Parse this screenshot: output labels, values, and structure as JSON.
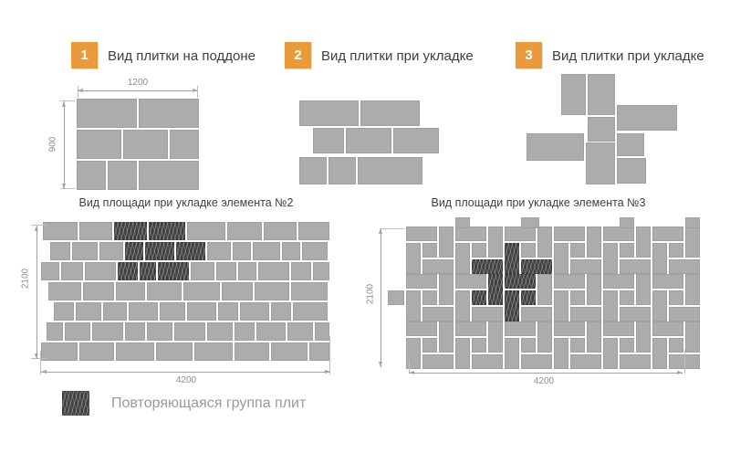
{
  "colors": {
    "accent_orange": "#E99B3B",
    "tile_gray": "#ACACAC",
    "tile_dark_hatched": "#3E3E3E",
    "dimension_line": "#A3A3A3",
    "dimension_text": "#8C8C8C",
    "title_text": "#3F3F3F",
    "legend_text": "#9A9A9A",
    "background": "#FFFFFF"
  },
  "steps": [
    {
      "badge": "1",
      "title": "Вид плитки на поддоне",
      "dim_top": "1200",
      "dim_left": "900",
      "tiles": [
        [
          0,
          0,
          66,
          32
        ],
        [
          68,
          0,
          66,
          32
        ],
        [
          0,
          34,
          49,
          32
        ],
        [
          51,
          34,
          49,
          32
        ],
        [
          102,
          34,
          32,
          32
        ],
        [
          0,
          68,
          32,
          32
        ],
        [
          34,
          68,
          32,
          32
        ],
        [
          68,
          68,
          66,
          32
        ]
      ]
    },
    {
      "badge": "2",
      "title": "Вид плитки при укладке",
      "tiles": [
        [
          0,
          0,
          65,
          28
        ],
        [
          67,
          0,
          65,
          28
        ],
        [
          15,
          30,
          34,
          28
        ],
        [
          51,
          30,
          50,
          28
        ],
        [
          103,
          30,
          50,
          28
        ],
        [
          0,
          62,
          30,
          30
        ],
        [
          32,
          62,
          30,
          30
        ],
        [
          64,
          62,
          71,
          30
        ]
      ]
    },
    {
      "badge": "3",
      "title": "Вид плитки при укладке",
      "tiles": [
        [
          38,
          0,
          27,
          45
        ],
        [
          67,
          0,
          30,
          45
        ],
        [
          99,
          34,
          66,
          28
        ],
        [
          67,
          47,
          30,
          27
        ],
        [
          0,
          65,
          63,
          30
        ],
        [
          65,
          75,
          32,
          46
        ],
        [
          99,
          65,
          30,
          25
        ],
        [
          99,
          92,
          32,
          28
        ]
      ]
    }
  ],
  "areas": [
    {
      "title": "Вид площади при укладке элемента №2",
      "dim_bottom": "4200",
      "dim_left": "2100",
      "tiles": [
        [
          2,
          0,
          38,
          20
        ],
        [
          42,
          0,
          36,
          20
        ],
        [
          80,
          0,
          36,
          20,
          1
        ],
        [
          118,
          0,
          40,
          20,
          1
        ],
        [
          160,
          0,
          42,
          20
        ],
        [
          204,
          0,
          38,
          20
        ],
        [
          244,
          0,
          36,
          20
        ],
        [
          282,
          0,
          34,
          20
        ],
        [
          10,
          22,
          22,
          20
        ],
        [
          34,
          22,
          28,
          20
        ],
        [
          64,
          22,
          26,
          20
        ],
        [
          92,
          22,
          20,
          20,
          1
        ],
        [
          114,
          22,
          32,
          20,
          1
        ],
        [
          148,
          22,
          32,
          20,
          1
        ],
        [
          182,
          22,
          26,
          20
        ],
        [
          210,
          22,
          20,
          20
        ],
        [
          232,
          22,
          30,
          20
        ],
        [
          264,
          22,
          20,
          20
        ],
        [
          286,
          22,
          28,
          20
        ],
        [
          0,
          44,
          20,
          20
        ],
        [
          22,
          44,
          24,
          20
        ],
        [
          48,
          44,
          34,
          20
        ],
        [
          84,
          44,
          22,
          20,
          1
        ],
        [
          108,
          44,
          18,
          20,
          1
        ],
        [
          128,
          44,
          34,
          20,
          1
        ],
        [
          164,
          44,
          26,
          20
        ],
        [
          192,
          44,
          22,
          20
        ],
        [
          216,
          44,
          20,
          20
        ],
        [
          238,
          44,
          34,
          20
        ],
        [
          274,
          44,
          22,
          20
        ],
        [
          298,
          44,
          18,
          20
        ],
        [
          8,
          66,
          36,
          20
        ],
        [
          46,
          66,
          34,
          20
        ],
        [
          82,
          66,
          32,
          20
        ],
        [
          116,
          66,
          38,
          20
        ],
        [
          156,
          66,
          40,
          20
        ],
        [
          198,
          66,
          34,
          20
        ],
        [
          234,
          66,
          38,
          20
        ],
        [
          274,
          66,
          40,
          20
        ],
        [
          14,
          88,
          22,
          20
        ],
        [
          38,
          88,
          28,
          20
        ],
        [
          68,
          88,
          26,
          20
        ],
        [
          96,
          88,
          32,
          20
        ],
        [
          130,
          88,
          28,
          20
        ],
        [
          160,
          88,
          32,
          20
        ],
        [
          194,
          88,
          22,
          20
        ],
        [
          218,
          88,
          32,
          20
        ],
        [
          252,
          88,
          22,
          20
        ],
        [
          276,
          88,
          38,
          20
        ],
        [
          6,
          110,
          18,
          20
        ],
        [
          26,
          110,
          28,
          20
        ],
        [
          56,
          110,
          34,
          20
        ],
        [
          92,
          110,
          22,
          20
        ],
        [
          116,
          110,
          28,
          20
        ],
        [
          146,
          110,
          34,
          20
        ],
        [
          182,
          110,
          28,
          20
        ],
        [
          212,
          110,
          22,
          20
        ],
        [
          236,
          110,
          32,
          20
        ],
        [
          270,
          110,
          28,
          20
        ],
        [
          300,
          110,
          16,
          20
        ],
        [
          0,
          132,
          40,
          20
        ],
        [
          42,
          132,
          38,
          20
        ],
        [
          82,
          132,
          42,
          20
        ],
        [
          126,
          132,
          40,
          20
        ],
        [
          168,
          132,
          42,
          20
        ],
        [
          212,
          132,
          38,
          20
        ],
        [
          252,
          132,
          40,
          20
        ],
        [
          294,
          132,
          22,
          20
        ]
      ]
    },
    {
      "title": "Вид площади при укладке элемента №3",
      "dim_bottom": "4200",
      "dim_left": "2100",
      "tiles": [
        [
          0,
          0,
          34,
          16
        ],
        [
          36,
          0,
          16,
          34
        ],
        [
          18,
          18,
          16,
          16
        ],
        [
          0,
          18,
          16,
          34
        ],
        [
          18,
          36,
          34,
          16
        ],
        [
          54,
          0,
          34,
          16
        ],
        [
          90,
          0,
          16,
          34
        ],
        [
          72,
          18,
          16,
          16
        ],
        [
          54,
          18,
          16,
          34
        ],
        [
          72,
          36,
          34,
          16,
          1
        ],
        [
          108,
          0,
          34,
          16
        ],
        [
          144,
          0,
          16,
          34
        ],
        [
          126,
          18,
          16,
          16
        ],
        [
          108,
          18,
          16,
          34,
          1
        ],
        [
          126,
          36,
          34,
          16,
          1
        ],
        [
          162,
          0,
          34,
          16
        ],
        [
          198,
          0,
          16,
          34
        ],
        [
          180,
          18,
          16,
          16
        ],
        [
          162,
          18,
          16,
          34
        ],
        [
          180,
          36,
          34,
          16
        ],
        [
          216,
          0,
          34,
          16
        ],
        [
          252,
          0,
          16,
          34
        ],
        [
          234,
          18,
          16,
          16
        ],
        [
          216,
          18,
          16,
          34
        ],
        [
          234,
          36,
          34,
          16
        ],
        [
          270,
          0,
          34,
          16
        ],
        [
          306,
          0,
          16,
          34
        ],
        [
          288,
          18,
          16,
          16
        ],
        [
          270,
          18,
          16,
          34
        ],
        [
          288,
          36,
          34,
          16
        ],
        [
          0,
          52,
          34,
          16
        ],
        [
          36,
          52,
          16,
          34
        ],
        [
          18,
          70,
          16,
          16
        ],
        [
          0,
          70,
          16,
          34
        ],
        [
          18,
          88,
          34,
          16
        ],
        [
          54,
          52,
          34,
          16
        ],
        [
          90,
          52,
          16,
          34,
          1
        ],
        [
          72,
          70,
          16,
          16,
          1
        ],
        [
          54,
          70,
          16,
          34
        ],
        [
          72,
          88,
          34,
          16
        ],
        [
          108,
          52,
          34,
          16,
          1
        ],
        [
          144,
          52,
          16,
          34
        ],
        [
          126,
          70,
          16,
          16,
          1
        ],
        [
          108,
          70,
          16,
          34,
          1
        ],
        [
          126,
          88,
          34,
          16
        ],
        [
          162,
          52,
          34,
          16
        ],
        [
          198,
          52,
          16,
          34
        ],
        [
          180,
          70,
          16,
          16
        ],
        [
          162,
          70,
          16,
          34
        ],
        [
          180,
          88,
          34,
          16
        ],
        [
          216,
          52,
          34,
          16
        ],
        [
          252,
          52,
          16,
          34
        ],
        [
          234,
          70,
          16,
          16
        ],
        [
          216,
          70,
          16,
          34
        ],
        [
          234,
          88,
          34,
          16
        ],
        [
          270,
          52,
          34,
          16
        ],
        [
          306,
          52,
          16,
          34
        ],
        [
          288,
          70,
          16,
          16
        ],
        [
          270,
          70,
          16,
          34
        ],
        [
          288,
          88,
          34,
          16
        ],
        [
          0,
          104,
          34,
          16
        ],
        [
          36,
          104,
          16,
          34
        ],
        [
          18,
          122,
          16,
          16
        ],
        [
          0,
          122,
          16,
          34
        ],
        [
          18,
          140,
          34,
          16
        ],
        [
          54,
          104,
          34,
          16
        ],
        [
          90,
          104,
          16,
          34
        ],
        [
          72,
          122,
          16,
          16
        ],
        [
          54,
          122,
          16,
          34
        ],
        [
          72,
          140,
          34,
          16
        ],
        [
          108,
          104,
          34,
          16
        ],
        [
          144,
          104,
          16,
          34
        ],
        [
          126,
          122,
          16,
          16
        ],
        [
          108,
          122,
          16,
          34
        ],
        [
          126,
          140,
          34,
          16
        ],
        [
          162,
          104,
          34,
          16
        ],
        [
          198,
          104,
          16,
          34
        ],
        [
          180,
          122,
          16,
          16
        ],
        [
          162,
          122,
          16,
          34
        ],
        [
          180,
          140,
          34,
          16
        ],
        [
          216,
          104,
          34,
          16
        ],
        [
          252,
          104,
          16,
          34
        ],
        [
          234,
          122,
          16,
          16
        ],
        [
          216,
          122,
          16,
          34
        ],
        [
          234,
          140,
          34,
          16
        ],
        [
          270,
          104,
          34,
          16
        ],
        [
          306,
          104,
          16,
          34
        ],
        [
          288,
          122,
          16,
          16
        ],
        [
          270,
          122,
          16,
          34
        ],
        [
          288,
          140,
          34,
          16
        ],
        [
          54,
          -10,
          16,
          12
        ],
        [
          126,
          -10,
          20,
          12
        ],
        [
          234,
          -10,
          16,
          12
        ],
        [
          306,
          -10,
          16,
          12
        ],
        [
          -20,
          70,
          18,
          16
        ]
      ]
    }
  ],
  "legend": {
    "label": "Повторяющаяся группа плит"
  }
}
